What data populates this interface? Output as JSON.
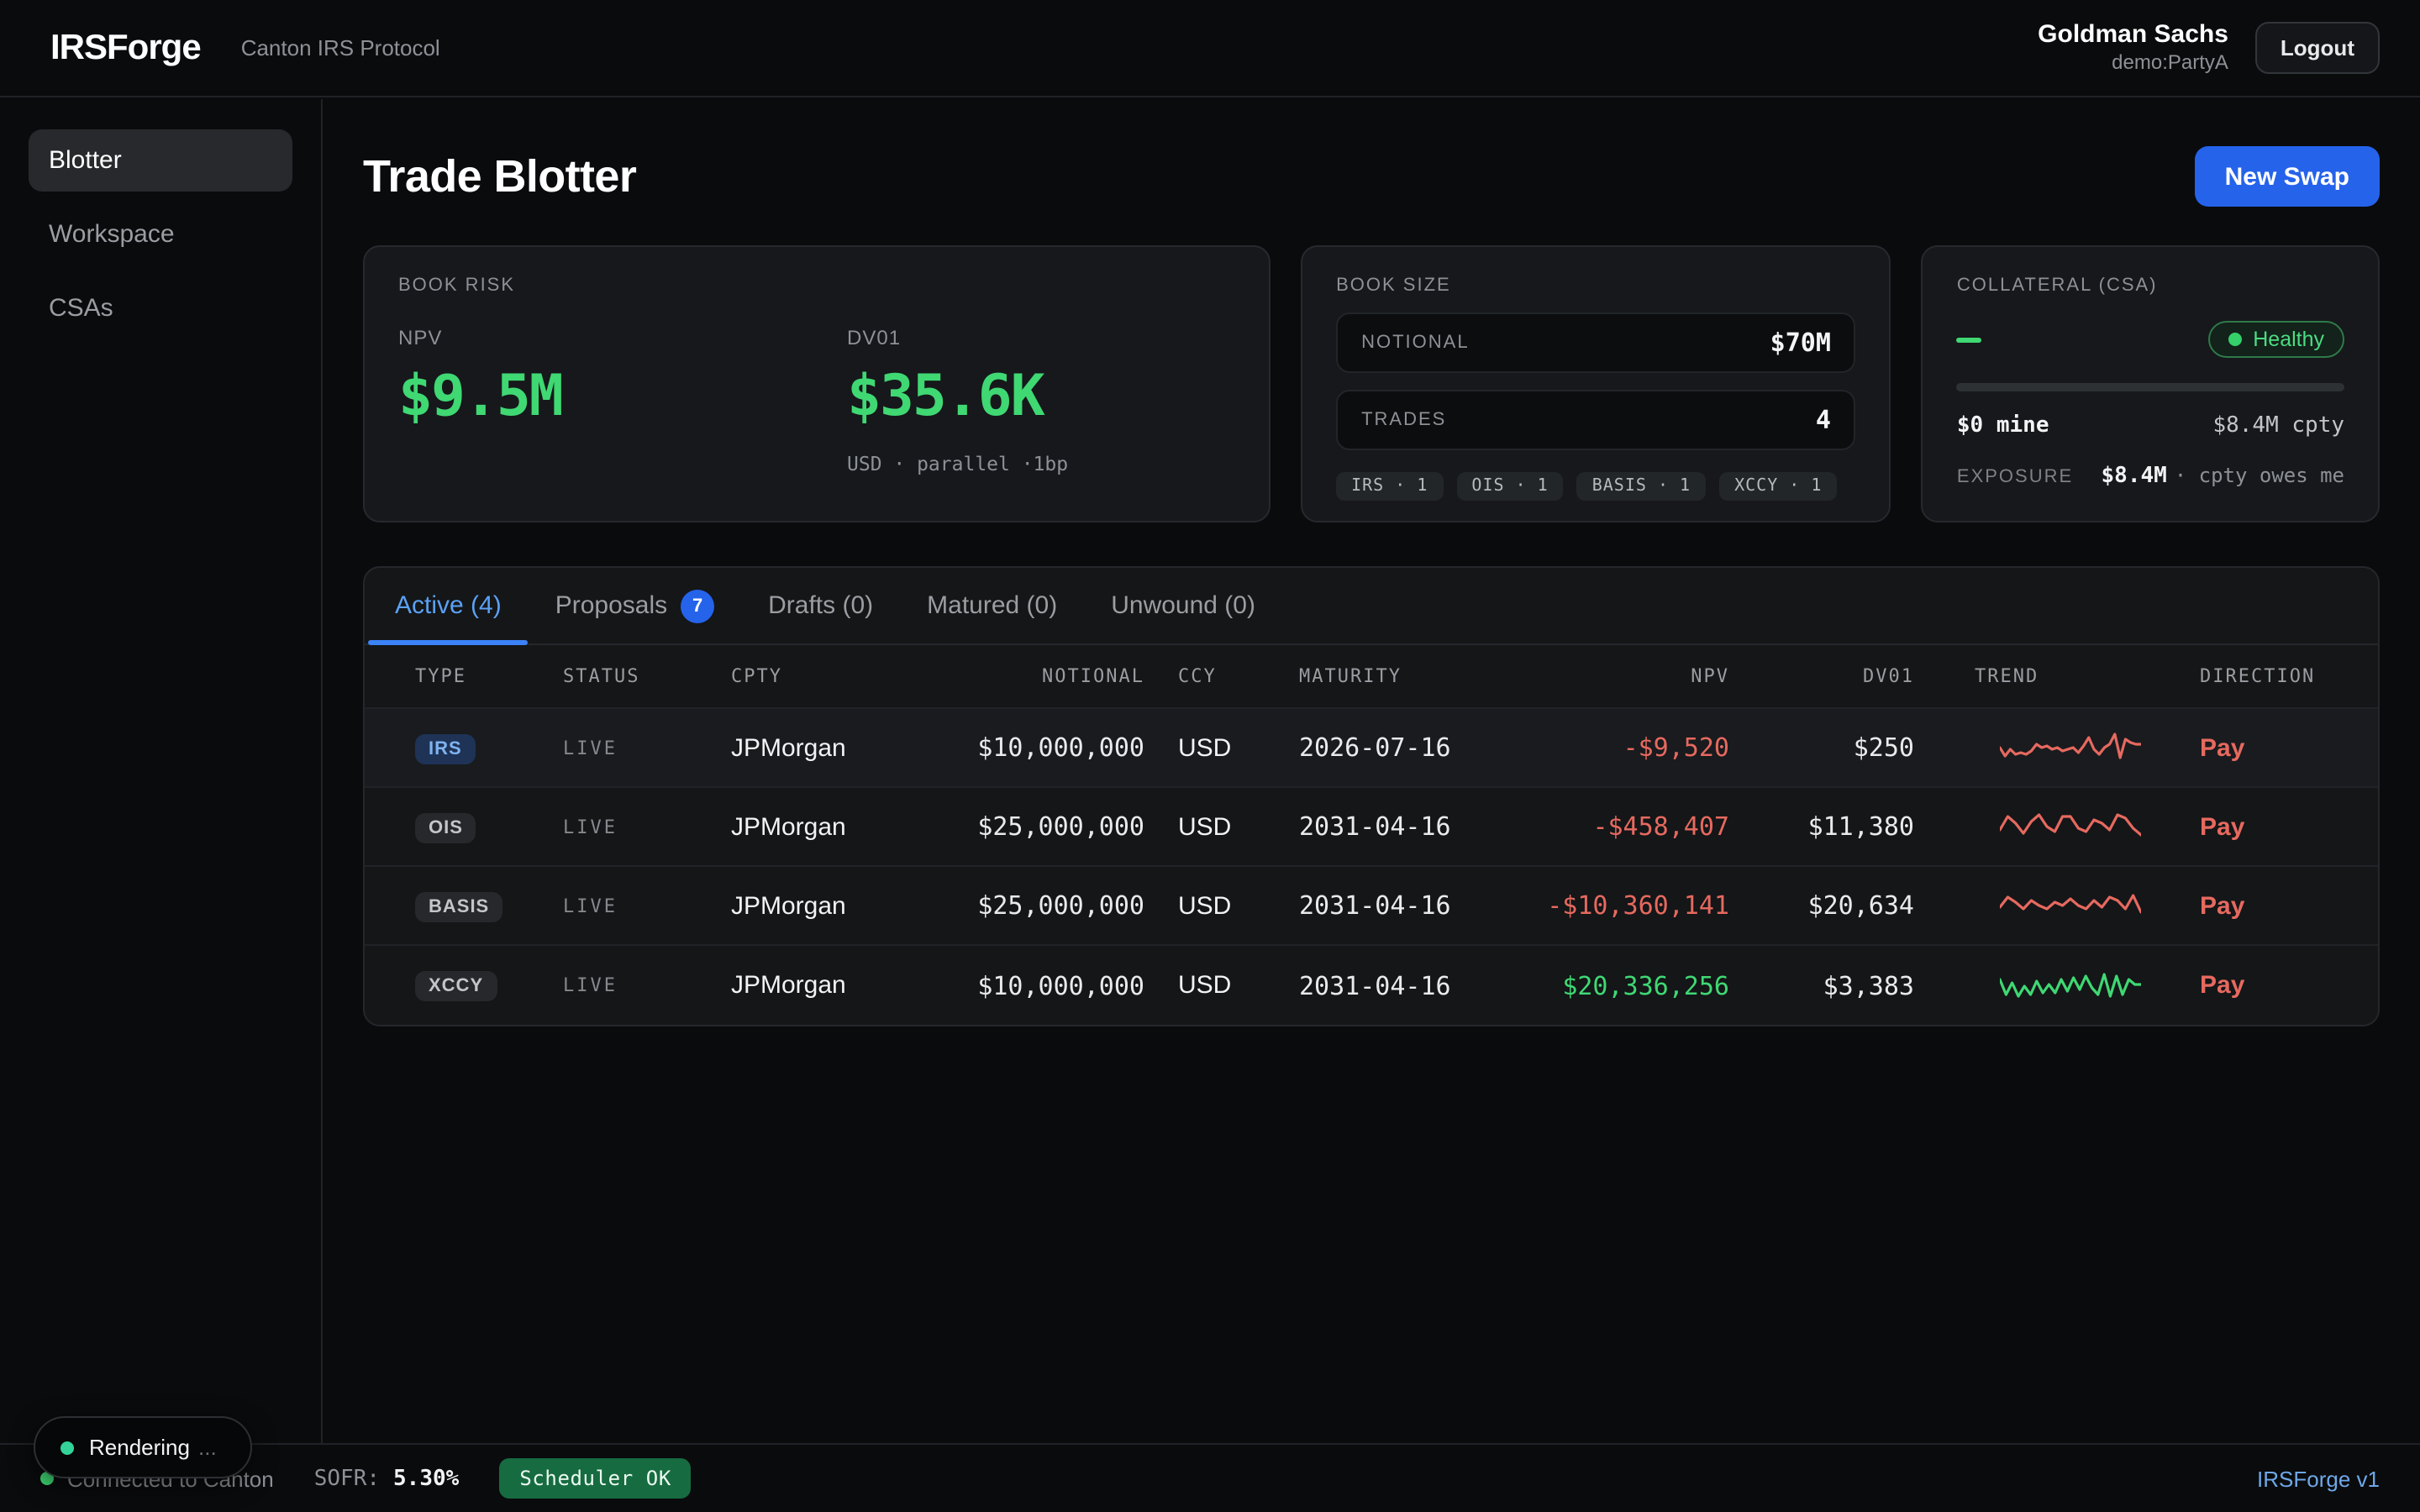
{
  "topbar": {
    "logo": "IRSForge",
    "subtitle": "Canton IRS Protocol",
    "user_name": "Goldman Sachs",
    "user_party": "demo:PartyA",
    "logout_label": "Logout"
  },
  "sidebar": {
    "items": [
      {
        "label": "Blotter",
        "active": true
      },
      {
        "label": "Workspace",
        "active": false
      },
      {
        "label": "CSAs",
        "active": false
      }
    ]
  },
  "page": {
    "title": "Trade Blotter",
    "new_swap_label": "New Swap"
  },
  "book_risk": {
    "label": "BOOK RISK",
    "npv_label": "NPV",
    "npv": "$9.5M",
    "dv01_label": "DV01",
    "dv01": "$35.6K",
    "dv01_note": "USD · parallel ·1bp"
  },
  "book_size": {
    "label": "BOOK SIZE",
    "notional_label": "NOTIONAL",
    "notional": "$70M",
    "trades_label": "TRADES",
    "trades": "4",
    "chips": [
      "IRS · 1",
      "OIS · 1",
      "BASIS · 1",
      "XCCY · 1"
    ]
  },
  "collateral": {
    "label": "COLLATERAL (CSA)",
    "status": "Healthy",
    "mine": "$0 mine",
    "cpty": "$8.4M cpty",
    "exposure_label": "EXPOSURE",
    "exposure": "$8.4M",
    "exposure_note": "· cpty owes me"
  },
  "tabs": [
    {
      "label": "Active (4)",
      "active": true
    },
    {
      "label": "Proposals",
      "badge": "7"
    },
    {
      "label": "Drafts (0)"
    },
    {
      "label": "Matured (0)"
    },
    {
      "label": "Unwound (0)"
    }
  ],
  "table": {
    "headers": [
      "TYPE",
      "STATUS",
      "CPTY",
      "NOTIONAL",
      "CCY",
      "MATURITY",
      "NPV",
      "DV01",
      "TREND",
      "DIRECTION"
    ],
    "rows": [
      {
        "type": "IRS",
        "type_style": "blue",
        "status": "LIVE",
        "cpty": "JPMorgan",
        "notional": "$10,000,000",
        "ccy": "USD",
        "maturity": "2026-07-16",
        "npv": "-$9,520",
        "npv_sign": "neg",
        "dv01": "$250",
        "trend_color": "#e6695f",
        "direction": "Pay",
        "highlight": true,
        "trend": [
          12,
          17,
          13,
          16,
          15,
          16,
          14,
          10,
          12,
          11,
          13,
          12,
          14,
          13,
          12,
          15,
          11,
          6,
          13,
          16,
          12,
          10,
          4,
          18,
          7,
          9,
          10,
          10
        ]
      },
      {
        "type": "OIS",
        "type_style": "gray",
        "status": "LIVE",
        "cpty": "JPMorgan",
        "notional": "$25,000,000",
        "ccy": "USD",
        "maturity": "2031-04-16",
        "npv": "-$458,407",
        "npv_sign": "neg",
        "dv01": "$11,380",
        "trend_color": "#e6695f",
        "direction": "Pay",
        "highlight": false,
        "trend": [
          14,
          6,
          10,
          16,
          9,
          5,
          12,
          15,
          6,
          6,
          13,
          15,
          8,
          10,
          14,
          5,
          7,
          13,
          17
        ]
      },
      {
        "type": "BASIS",
        "type_style": "gray",
        "status": "LIVE",
        "cpty": "JPMorgan",
        "notional": "$25,000,000",
        "ccy": "USD",
        "maturity": "2031-04-16",
        "npv": "-$10,360,141",
        "npv_sign": "neg",
        "dv01": "$20,634",
        "trend_color": "#e6695f",
        "direction": "Pay",
        "highlight": false,
        "trend": [
          13,
          7,
          10,
          14,
          9,
          12,
          14,
          10,
          12,
          8,
          12,
          14,
          9,
          13,
          7,
          9,
          14,
          6,
          16
        ]
      },
      {
        "type": "XCCY",
        "type_style": "gray",
        "status": "LIVE",
        "cpty": "JPMorgan",
        "notional": "$10,000,000",
        "ccy": "USD",
        "maturity": "2031-04-16",
        "npv": "$20,336,256",
        "npv_sign": "pos",
        "dv01": "$3,383",
        "trend_color": "#3fd873",
        "direction": "Pay",
        "highlight": false,
        "trend": [
          8,
          17,
          10,
          18,
          12,
          17,
          9,
          16,
          11,
          16,
          8,
          15,
          7,
          14,
          6,
          13,
          17,
          5,
          18,
          6,
          17,
          8,
          11,
          11
        ]
      }
    ]
  },
  "statusbar": {
    "connection": "Connected to Canton",
    "sofr_label": "SOFR:",
    "sofr": "5.30%",
    "scheduler": "Scheduler OK",
    "version": "IRSForge v1"
  },
  "toast": {
    "label": "Rendering",
    "ellipsis": "..."
  },
  "colors": {
    "green": "#3fd873",
    "red": "#e6695f",
    "blue": "#2563eb"
  }
}
